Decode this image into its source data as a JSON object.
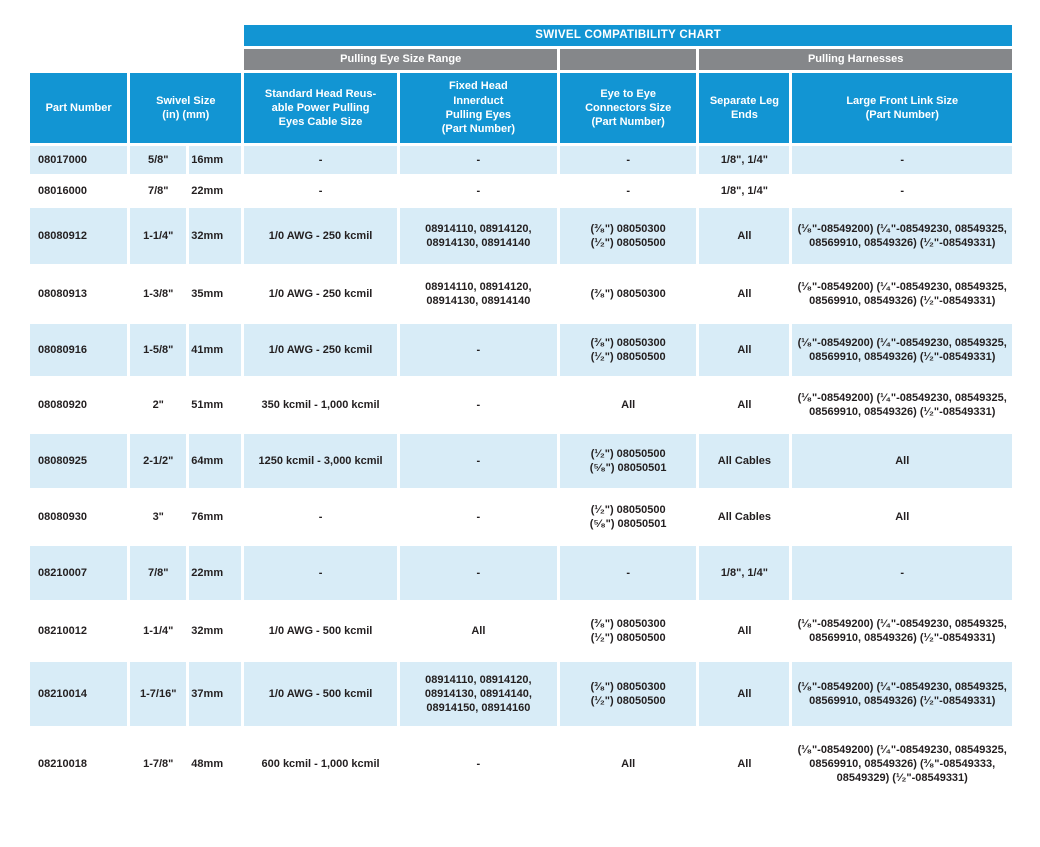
{
  "colors": {
    "header_blue": "#1295d3",
    "band_gray": "#85878a",
    "row_alt_blue": "#d8ecf7",
    "body_text": "#231f20",
    "header_text": "#ffffff"
  },
  "table": {
    "title": "SWIVEL COMPATIBILITY CHART",
    "bands": {
      "pulling_eye_size_range": "Pulling Eye Size Range",
      "pulling_harnesses": "Pulling Harnesses"
    },
    "columns": [
      {
        "key": "part_number",
        "label": "Part Number"
      },
      {
        "key": "swivel_size",
        "label": "Swivel Size\n(in) (mm)"
      },
      {
        "key": "standard_head",
        "label": "Standard Head Reus-\nable Power Pulling\nEyes Cable Size"
      },
      {
        "key": "fixed_head",
        "label": "Fixed Head\nInnerduct\nPulling Eyes\n(Part Number)"
      },
      {
        "key": "eye_to_eye",
        "label": "Eye to Eye\nConnectors Size\n(Part Number)"
      },
      {
        "key": "leg_ends",
        "label": "Separate Leg\nEnds"
      },
      {
        "key": "front_link",
        "label": "Large Front Link Size\n(Part Number)"
      }
    ],
    "cell_keys": [
      "part_number",
      "size_in",
      "size_mm",
      "standard_head",
      "fixed_head",
      "eye_to_eye",
      "leg_ends",
      "front_link"
    ],
    "rows": [
      {
        "part_number": "08017000",
        "size_in": "5/8\"",
        "size_mm": "16mm",
        "standard_head": "-",
        "fixed_head": "-",
        "eye_to_eye": "-",
        "leg_ends": "1/8\", 1/4\"",
        "front_link": "-"
      },
      {
        "part_number": "08016000",
        "size_in": "7/8\"",
        "size_mm": "22mm",
        "standard_head": "-",
        "fixed_head": "-",
        "eye_to_eye": "-",
        "leg_ends": "1/8\", 1/4\"",
        "front_link": "-"
      },
      {
        "part_number": "08080912",
        "size_in": "1-1/4\"",
        "size_mm": "32mm",
        "standard_head": "1/0 AWG - 250 kcmil",
        "fixed_head": "08914110, 08914120, 08914130, 08914140",
        "eye_to_eye": "(³⁄₈\") 08050300\n(¹⁄₂\") 08050500",
        "leg_ends": "All",
        "front_link": "(¹⁄₈\"-08549200) (¹⁄₄\"-08549230, 08549325, 08569910, 08549326) (¹⁄₂\"-08549331)"
      },
      {
        "part_number": "08080913",
        "size_in": "1-3/8\"",
        "size_mm": "35mm",
        "standard_head": "1/0 AWG - 250 kcmil",
        "fixed_head": "08914110, 08914120, 08914130, 08914140",
        "eye_to_eye": "(³⁄₈\") 08050300",
        "leg_ends": "All",
        "front_link": "(¹⁄₈\"-08549200) (¹⁄₄\"-08549230, 08549325, 08569910, 08549326) (¹⁄₂\"-08549331)"
      },
      {
        "part_number": "08080916",
        "size_in": "1-5/8\"",
        "size_mm": "41mm",
        "standard_head": "1/0 AWG - 250 kcmil",
        "fixed_head": "-",
        "eye_to_eye": "(³⁄₈\") 08050300\n(¹⁄₂\") 08050500",
        "leg_ends": "All",
        "front_link": "(¹⁄₈\"-08549200) (¹⁄₄\"-08549230, 08549325, 08569910, 08549326) (¹⁄₂\"-08549331)"
      },
      {
        "part_number": "08080920",
        "size_in": "2\"",
        "size_mm": "51mm",
        "standard_head": "350 kcmil - 1,000 kcmil",
        "fixed_head": "-",
        "eye_to_eye": "All",
        "leg_ends": "All",
        "front_link": "(¹⁄₈\"-08549200) (¹⁄₄\"-08549230, 08549325, 08569910, 08549326) (¹⁄₂\"-08549331)"
      },
      {
        "part_number": "08080925",
        "size_in": "2-1/2\"",
        "size_mm": "64mm",
        "standard_head": "1250 kcmil - 3,000 kcmil",
        "fixed_head": "-",
        "eye_to_eye": "(¹⁄₂\") 08050500\n(⁵⁄₈\") 08050501",
        "leg_ends": "All Cables",
        "front_link": "All"
      },
      {
        "part_number": "08080930",
        "size_in": "3\"",
        "size_mm": "76mm",
        "standard_head": "-",
        "fixed_head": "-",
        "eye_to_eye": "(¹⁄₂\") 08050500\n(⁵⁄₈\") 08050501",
        "leg_ends": "All Cables",
        "front_link": "All"
      },
      {
        "part_number": "08210007",
        "size_in": "7/8\"",
        "size_mm": "22mm",
        "standard_head": "-",
        "fixed_head": "-",
        "eye_to_eye": "-",
        "leg_ends": "1/8\", 1/4\"",
        "front_link": "-"
      },
      {
        "part_number": "08210012",
        "size_in": "1-1/4\"",
        "size_mm": "32mm",
        "standard_head": "1/0 AWG - 500 kcmil",
        "fixed_head": "All",
        "eye_to_eye": "(³⁄₈\") 08050300\n(¹⁄₂\") 08050500",
        "leg_ends": "All",
        "front_link": "(¹⁄₈\"-08549200) (¹⁄₄\"-08549230, 08549325, 08569910, 08549326) (¹⁄₂\"-08549331)"
      },
      {
        "part_number": "08210014",
        "size_in": "1-7/16\"",
        "size_mm": "37mm",
        "standard_head": "1/0 AWG - 500 kcmil",
        "fixed_head": "08914110, 08914120, 08914130, 08914140, 08914150, 08914160",
        "eye_to_eye": "(³⁄₈\") 08050300\n(¹⁄₂\") 08050500",
        "leg_ends": "All",
        "front_link": "(¹⁄₈\"-08549200) (¹⁄₄\"-08549230, 08549325, 08569910, 08549326) (¹⁄₂\"-08549331)"
      },
      {
        "part_number": "08210018",
        "size_in": "1-7/8\"",
        "size_mm": "48mm",
        "standard_head": "600 kcmil - 1,000 kcmil",
        "fixed_head": "-",
        "eye_to_eye": "All",
        "leg_ends": "All",
        "front_link": "(¹⁄₈\"-08549200) (¹⁄₄\"-08549230, 08549325, 08569910, 08549326) (³⁄₈\"-08549333, 08549329) (¹⁄₂\"-08549331)"
      }
    ]
  }
}
